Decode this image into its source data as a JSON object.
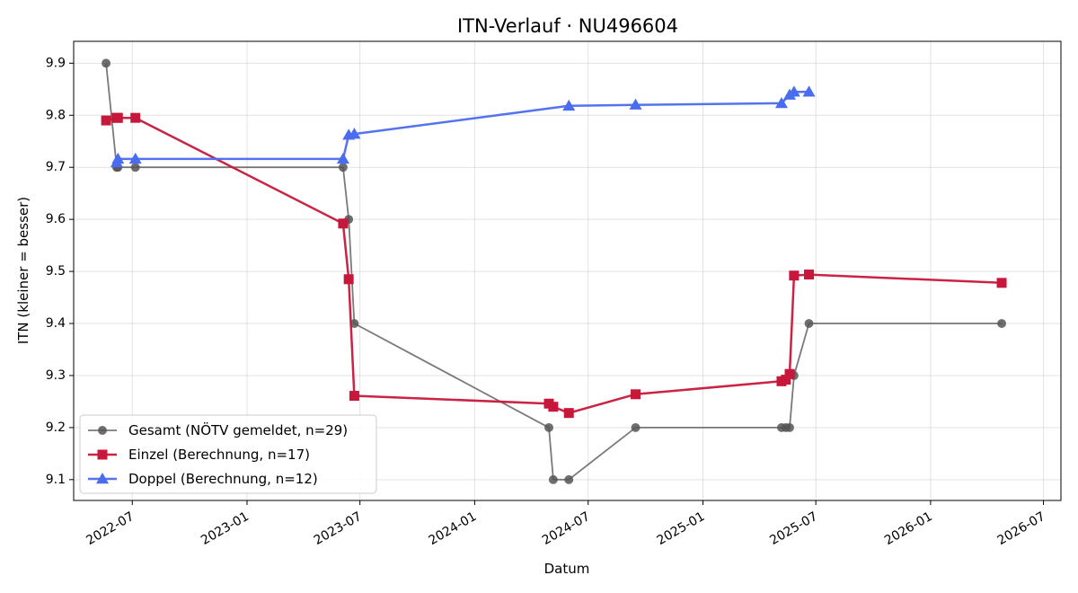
{
  "chart_data": {
    "type": "line",
    "title": "ITN-Verlauf · NU496604",
    "xlabel": "Datum",
    "ylabel": "ITN  (kleiner = besser)",
    "x_axis": "date",
    "xlim": [
      "2022-03-29",
      "2026-07-29"
    ],
    "ylim": [
      9.06,
      9.942
    ],
    "x_ticks": [
      "2022-07",
      "2023-01",
      "2023-07",
      "2024-01",
      "2024-07",
      "2025-01",
      "2025-07",
      "2026-01",
      "2026-07"
    ],
    "y_ticks": [
      "9.1",
      "9.2",
      "9.3",
      "9.4",
      "9.5",
      "9.6",
      "9.7",
      "9.8",
      "9.9"
    ],
    "grid": true,
    "legend_position": "lower-left",
    "series": [
      {
        "name": "Gesamt (NÖTV gemeldet, n=29)",
        "color": "#555555",
        "marker": "circle",
        "points": [
          [
            "2022-05-20",
            9.9
          ],
          [
            "2022-06-06",
            9.7
          ],
          [
            "2022-06-08",
            9.7
          ],
          [
            "2022-07-06",
            9.7
          ],
          [
            "2023-06-04",
            9.7
          ],
          [
            "2023-06-13",
            9.6
          ],
          [
            "2023-06-22",
            9.4
          ],
          [
            "2024-04-29",
            9.2
          ],
          [
            "2024-05-06",
            9.1
          ],
          [
            "2024-05-31",
            9.1
          ],
          [
            "2024-09-15",
            9.2
          ],
          [
            "2025-05-07",
            9.2
          ],
          [
            "2025-05-14",
            9.2
          ],
          [
            "2025-05-20",
            9.2
          ],
          [
            "2025-05-27",
            9.3
          ],
          [
            "2025-06-20",
            9.4
          ],
          [
            "2026-04-25",
            9.4
          ]
        ]
      },
      {
        "name": "Einzel (Berechnung, n=17)",
        "color": "#c7173a",
        "marker": "square",
        "points": [
          [
            "2022-05-20",
            9.79
          ],
          [
            "2022-06-06",
            9.795
          ],
          [
            "2022-06-08",
            9.795
          ],
          [
            "2022-07-06",
            9.795
          ],
          [
            "2023-06-04",
            9.592
          ],
          [
            "2023-06-13",
            9.485
          ],
          [
            "2023-06-22",
            9.261
          ],
          [
            "2024-04-29",
            9.246
          ],
          [
            "2024-05-06",
            9.24
          ],
          [
            "2024-05-31",
            9.228
          ],
          [
            "2024-09-15",
            9.264
          ],
          [
            "2025-05-07",
            9.289
          ],
          [
            "2025-05-14",
            9.292
          ],
          [
            "2025-05-20",
            9.303
          ],
          [
            "2025-05-27",
            9.492
          ],
          [
            "2025-06-20",
            9.494
          ],
          [
            "2026-04-25",
            9.478
          ]
        ]
      },
      {
        "name": "Doppel (Berechnung, n=12)",
        "color": "#4a6cf0",
        "marker": "triangle",
        "points": [
          [
            "2022-06-06",
            9.709
          ],
          [
            "2022-06-08",
            9.716
          ],
          [
            "2022-07-06",
            9.716
          ],
          [
            "2023-06-04",
            9.716
          ],
          [
            "2023-06-13",
            9.762
          ],
          [
            "2023-06-22",
            9.764
          ],
          [
            "2024-05-31",
            9.818
          ],
          [
            "2024-09-15",
            9.82
          ],
          [
            "2025-05-07",
            9.823
          ],
          [
            "2025-05-20",
            9.839
          ],
          [
            "2025-05-27",
            9.845
          ],
          [
            "2025-06-20",
            9.845
          ]
        ]
      }
    ]
  }
}
